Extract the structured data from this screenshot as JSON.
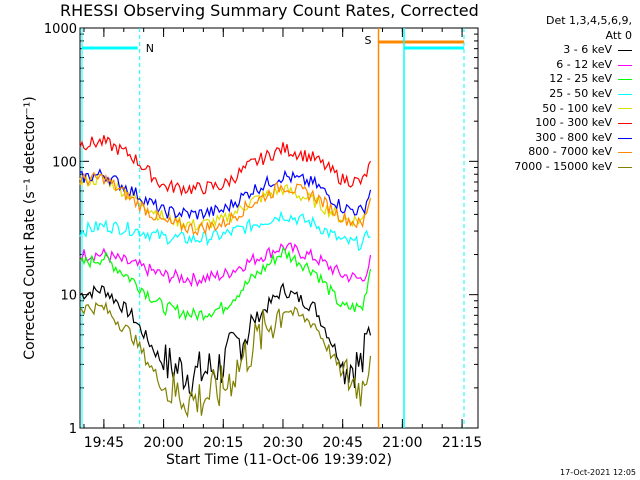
{
  "title": "RHESSI Observing Summary Count Rates, Corrected",
  "legend": {
    "header": [
      "Det 1,3,4,5,6,9,",
      "Att 0"
    ]
  },
  "footer_stamp": "17-Oct-2021 12:05",
  "chart_data": {
    "type": "line",
    "title": "RHESSI Observing Summary Count Rates, Corrected",
    "xlabel": "Start Time (11-Oct-06 19:39:02)",
    "ylabel": "Corrected Count Rate (s⁻¹ detector⁻¹)",
    "y_scale": "log",
    "ylim": [
      1,
      1000
    ],
    "xlim": [
      "19:39",
      "21:19"
    ],
    "x_ticks": [
      "19:45",
      "20:00",
      "20:15",
      "20:30",
      "20:45",
      "21:00",
      "21:15"
    ],
    "y_ticks": [
      "1",
      "10",
      "100",
      "1000"
    ],
    "legend_position": "right",
    "x": [
      "19:39",
      "19:45",
      "19:52",
      "20:00",
      "20:08",
      "20:15",
      "20:22",
      "20:30",
      "20:38",
      "20:45",
      "20:50",
      "20:52"
    ],
    "series": [
      {
        "name": "3 - 6 keV",
        "color": "#000000",
        "values": [
          10,
          11,
          7,
          3,
          2.5,
          3,
          6,
          11,
          8,
          3,
          3,
          6
        ]
      },
      {
        "name": "6 - 12 keV",
        "color": "#ff00ff",
        "values": [
          20,
          20,
          17,
          14,
          13,
          14,
          18,
          23,
          19,
          14,
          13,
          18
        ]
      },
      {
        "name": "12 - 25 keV",
        "color": "#00ff00",
        "values": [
          17,
          19,
          13,
          8,
          7,
          8,
          13,
          21,
          15,
          8,
          8,
          16
        ]
      },
      {
        "name": "25 - 50 keV",
        "color": "#00ffff",
        "values": [
          30,
          33,
          31,
          27,
          26,
          28,
          33,
          40,
          34,
          25,
          24,
          30
        ]
      },
      {
        "name": "50 - 100 keV",
        "color": "#dddd00",
        "values": [
          70,
          75,
          55,
          38,
          33,
          36,
          50,
          62,
          50,
          37,
          36,
          55
        ]
      },
      {
        "name": "100 - 300 keV",
        "color": "#ff0000",
        "values": [
          135,
          140,
          110,
          65,
          62,
          66,
          95,
          125,
          105,
          73,
          70,
          95
        ]
      },
      {
        "name": "300 - 800 keV",
        "color": "#0000ff",
        "values": [
          75,
          80,
          60,
          42,
          40,
          43,
          60,
          78,
          68,
          45,
          42,
          60
        ]
      },
      {
        "name": "800 - 7000 keV",
        "color": "#ff8800",
        "values": [
          72,
          75,
          52,
          35,
          31,
          34,
          48,
          66,
          55,
          38,
          33,
          55
        ]
      },
      {
        "name": "7000 - 15000 keV",
        "color": "#808000",
        "values": [
          8,
          8,
          5,
          2,
          1.6,
          2,
          4,
          8,
          6,
          2.5,
          2,
          4
        ]
      }
    ],
    "annotations": [
      {
        "label": "N",
        "x": "19:54",
        "color": "#00ffff"
      },
      {
        "label": "S",
        "x": "20:54",
        "color": "#ff8800"
      }
    ]
  }
}
